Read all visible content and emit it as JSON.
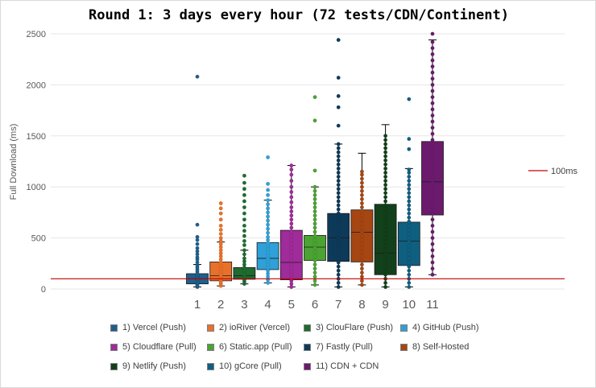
{
  "chart_data": {
    "type": "box",
    "title": "Round 1: 3 days every hour (72 tests/CDN/Continent)",
    "ylabel": "Full Download (ms)",
    "xlabel": "",
    "ylim": [
      0,
      2500
    ],
    "yticks": [
      0,
      500,
      1000,
      1500,
      2000,
      2500
    ],
    "categories": [
      "1",
      "2",
      "3",
      "4",
      "5",
      "6",
      "7",
      "8",
      "9",
      "10",
      "11"
    ],
    "reference_line": {
      "name": "100ms",
      "value": 100,
      "color": "#c00000"
    },
    "legend": "bottom",
    "series": [
      {
        "name": "1) Vercel (Push)",
        "color": "#1f5f8b",
        "q1": 50,
        "median": 100,
        "q3": 150,
        "whisker_low": 20,
        "whisker_high": 240,
        "points": [
          20,
          30,
          40,
          50,
          60,
          70,
          80,
          90,
          100,
          110,
          120,
          130,
          140,
          150,
          170,
          190,
          210,
          230,
          260,
          290,
          310,
          340,
          370,
          400,
          440,
          480,
          510,
          630,
          2080
        ]
      },
      {
        "name": "2) ioRiver (Vercel)",
        "color": "#e8702a",
        "q1": 80,
        "median": 130,
        "q3": 265,
        "whisker_low": 30,
        "whisker_high": 460,
        "points": [
          30,
          50,
          70,
          90,
          110,
          130,
          150,
          170,
          200,
          230,
          260,
          290,
          320,
          350,
          380,
          410,
          440,
          470,
          500,
          540,
          580,
          620,
          680,
          740,
          790,
          840
        ]
      },
      {
        "name": "3) ClouFlare (Push)",
        "color": "#1e6b2f",
        "q1": 95,
        "median": 130,
        "q3": 210,
        "whisker_low": 50,
        "whisker_high": 380,
        "points": [
          50,
          70,
          90,
          110,
          130,
          150,
          180,
          210,
          240,
          270,
          300,
          340,
          380,
          430,
          470,
          520,
          570,
          620,
          680,
          740,
          800,
          860,
          920,
          980,
          1040,
          1110
        ]
      },
      {
        "name": "4) GitHub (Push)",
        "color": "#2fa0d8",
        "q1": 190,
        "median": 300,
        "q3": 455,
        "whisker_low": 60,
        "whisker_high": 870,
        "points": [
          60,
          90,
          120,
          150,
          180,
          210,
          240,
          270,
          300,
          330,
          360,
          390,
          420,
          450,
          480,
          510,
          550,
          590,
          630,
          670,
          710,
          750,
          790,
          830,
          870,
          920,
          970,
          1030,
          1290
        ]
      },
      {
        "name": "5) Cloudflare (Pull)",
        "color": "#a02b9a",
        "q1": 90,
        "median": 260,
        "q3": 575,
        "whisker_low": 20,
        "whisker_high": 1210,
        "points": [
          20,
          50,
          80,
          110,
          140,
          170,
          200,
          240,
          280,
          320,
          360,
          400,
          440,
          480,
          520,
          560,
          600,
          640,
          680,
          720,
          760,
          800,
          850,
          900,
          950,
          1000,
          1060,
          1120,
          1170,
          1210
        ]
      },
      {
        "name": "6) Static.app (Pull)",
        "color": "#4aa332",
        "q1": 280,
        "median": 410,
        "q3": 525,
        "whisker_low": 40,
        "whisker_high": 1000,
        "points": [
          40,
          80,
          120,
          160,
          200,
          240,
          280,
          320,
          360,
          400,
          440,
          480,
          520,
          560,
          600,
          640,
          680,
          720,
          760,
          800,
          840,
          880,
          920,
          960,
          1000,
          1160,
          1650,
          1880
        ]
      },
      {
        "name": "7) Fastly (Pull)",
        "color": "#0e3a5a",
        "q1": 270,
        "median": 500,
        "q3": 740,
        "whisker_low": 20,
        "whisker_high": 1420,
        "points": [
          20,
          60,
          100,
          140,
          180,
          220,
          260,
          300,
          340,
          380,
          420,
          460,
          500,
          540,
          580,
          620,
          660,
          700,
          740,
          780,
          820,
          860,
          900,
          940,
          980,
          1020,
          1060,
          1100,
          1140,
          1180,
          1220,
          1260,
          1300,
          1340,
          1380,
          1420,
          1600,
          1780,
          1890,
          2070,
          2440
        ]
      },
      {
        "name": "8) Self-Hosted",
        "color": "#a64612",
        "q1": 265,
        "median": 555,
        "q3": 775,
        "whisker_low": 40,
        "whisker_high": 1330,
        "points": [
          40,
          80,
          120,
          160,
          200,
          240,
          280,
          320,
          360,
          400,
          440,
          480,
          520,
          560,
          600,
          640,
          680,
          720,
          760,
          800,
          840,
          880,
          920,
          960,
          1000,
          1040,
          1080,
          1120,
          1150
        ]
      },
      {
        "name": "9) Netlify (Push)",
        "color": "#12401a",
        "q1": 140,
        "median": 350,
        "q3": 830,
        "whisker_low": 20,
        "whisker_high": 1610,
        "points": [
          20,
          60,
          100,
          140,
          180,
          220,
          260,
          300,
          340,
          380,
          420,
          460,
          500,
          540,
          580,
          620,
          660,
          700,
          740,
          780,
          820,
          860,
          900,
          940,
          980,
          1020,
          1060,
          1100,
          1140,
          1180,
          1220,
          1260,
          1300,
          1340,
          1380,
          1420,
          1460,
          1500
        ]
      },
      {
        "name": "10) gCore (Pull)",
        "color": "#0f5f80",
        "q1": 230,
        "median": 470,
        "q3": 655,
        "whisker_low": 20,
        "whisker_high": 1180,
        "points": [
          20,
          60,
          100,
          140,
          180,
          220,
          260,
          300,
          340,
          380,
          420,
          460,
          500,
          540,
          580,
          620,
          660,
          700,
          740,
          780,
          820,
          860,
          900,
          940,
          980,
          1020,
          1060,
          1100,
          1140,
          1170,
          1370,
          1470,
          1860
        ]
      },
      {
        "name": "11) CDN + CDN",
        "color": "#6b1a6e",
        "q1": 725,
        "median": 1050,
        "q3": 1445,
        "whisker_low": 140,
        "whisker_high": 2440,
        "points": [
          140,
          200,
          260,
          320,
          380,
          440,
          500,
          560,
          620,
          680,
          740,
          800,
          860,
          920,
          980,
          1040,
          1100,
          1160,
          1220,
          1280,
          1340,
          1400,
          1460,
          1520,
          1580,
          1640,
          1700,
          1760,
          1820,
          1880,
          1940,
          2000,
          2060,
          2120,
          2180,
          2240,
          2300,
          2360,
          2420,
          2500
        ]
      }
    ]
  }
}
